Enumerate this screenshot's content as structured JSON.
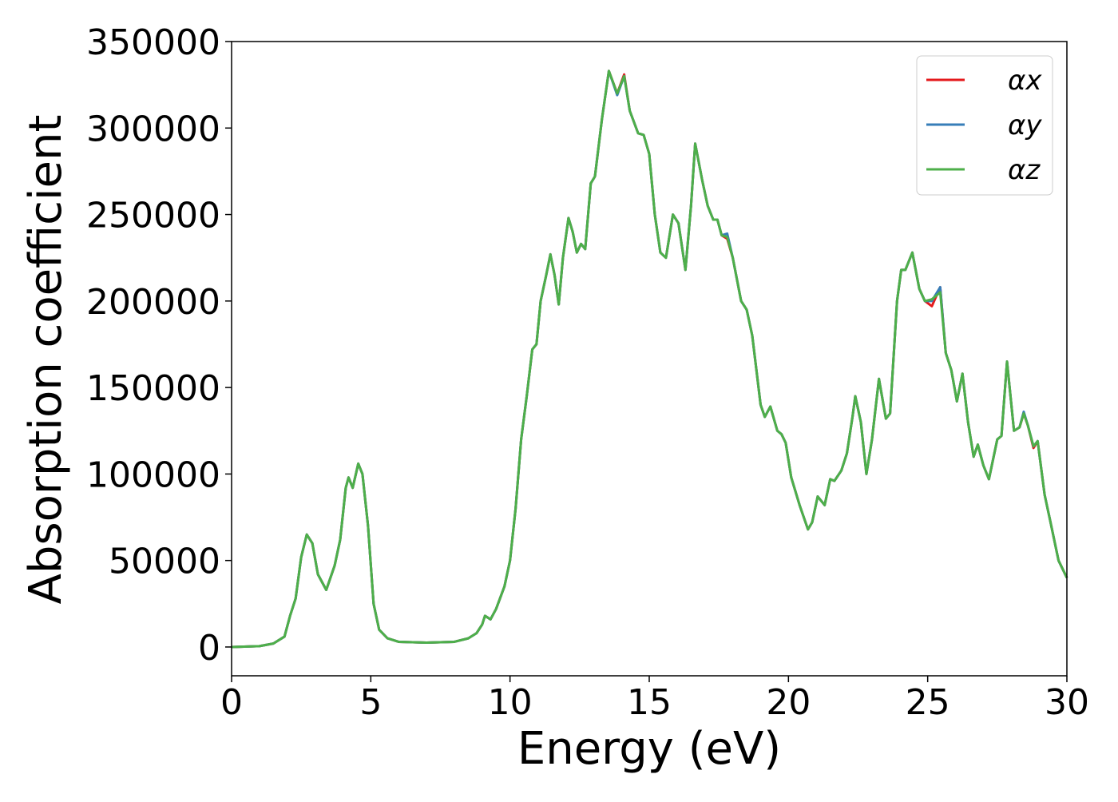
{
  "chart_data": {
    "type": "line",
    "xlabel": "Energy (eV)",
    "ylabel": "Absorption coefficient",
    "x": [
      0,
      1,
      1.5,
      1.9,
      2.1,
      2.3,
      2.5,
      2.7,
      2.9,
      3.1,
      3.4,
      3.7,
      3.9,
      4.1,
      4.2,
      4.35,
      4.55,
      4.7,
      4.9,
      5.1,
      5.3,
      5.6,
      6,
      7,
      8,
      8.5,
      8.8,
      9,
      9.1,
      9.3,
      9.5,
      9.8,
      10,
      10.2,
      10.4,
      10.6,
      10.8,
      10.95,
      11.1,
      11.3,
      11.45,
      11.6,
      11.75,
      11.9,
      12.1,
      12.25,
      12.4,
      12.55,
      12.7,
      12.9,
      13.05,
      13.3,
      13.55,
      13.85,
      14.1,
      14.3,
      14.6,
      14.8,
      15,
      15.2,
      15.4,
      15.6,
      15.85,
      16.05,
      16.3,
      16.5,
      16.65,
      16.9,
      17.1,
      17.3,
      17.45,
      17.6,
      17.8,
      18,
      18.3,
      18.5,
      18.7,
      19,
      19.15,
      19.35,
      19.6,
      19.75,
      19.9,
      20.1,
      20.4,
      20.7,
      20.85,
      21.05,
      21.3,
      21.5,
      21.65,
      21.9,
      22.1,
      22.3,
      22.4,
      22.6,
      22.8,
      23,
      23.25,
      23.5,
      23.65,
      23.9,
      24.05,
      24.2,
      24.45,
      24.7,
      24.9,
      25.15,
      25.45,
      25.65,
      25.85,
      26.05,
      26.25,
      26.45,
      26.65,
      26.8,
      27,
      27.2,
      27.5,
      27.65,
      27.85,
      28.1,
      28.3,
      28.45,
      28.6,
      28.8,
      28.95,
      29.2,
      29.4,
      29.7,
      30
    ],
    "series": [
      {
        "name": "αx",
        "color": "#e41a1c",
        "values": [
          0,
          500,
          2000,
          6000,
          18000,
          28000,
          52000,
          65000,
          60000,
          42000,
          33000,
          47000,
          62000,
          92000,
          98000,
          92000,
          106000,
          100000,
          70000,
          25000,
          10000,
          5000,
          3000,
          2500,
          3000,
          5000,
          8000,
          13000,
          18000,
          16000,
          22000,
          35000,
          50000,
          80000,
          120000,
          145000,
          172000,
          175000,
          200000,
          215000,
          227000,
          215000,
          198000,
          225000,
          248000,
          240000,
          228000,
          233000,
          230000,
          268000,
          272000,
          305000,
          333000,
          320000,
          331000,
          310000,
          297000,
          296000,
          285000,
          250000,
          228000,
          225000,
          250000,
          245000,
          218000,
          255000,
          291000,
          270000,
          255000,
          247000,
          247000,
          238000,
          236000,
          225000,
          200000,
          195000,
          180000,
          140000,
          133000,
          139000,
          125000,
          123000,
          118000,
          98000,
          82000,
          68000,
          72000,
          87000,
          82000,
          97000,
          96000,
          102000,
          112000,
          133000,
          145000,
          130000,
          100000,
          120000,
          155000,
          132000,
          135000,
          200000,
          218000,
          218000,
          228000,
          207000,
          200000,
          197000,
          208000,
          170000,
          160000,
          142000,
          158000,
          130000,
          110000,
          117000,
          105000,
          97000,
          120000,
          122000,
          165000,
          125000,
          127000,
          135000,
          128000,
          115000,
          119000,
          88000,
          73000,
          50000,
          40000
        ]
      },
      {
        "name": "αy",
        "color": "#377eb8",
        "values": [
          0,
          500,
          2000,
          6000,
          18000,
          28000,
          52000,
          65000,
          60000,
          42000,
          33000,
          47000,
          62000,
          92000,
          98000,
          92000,
          106000,
          100000,
          70000,
          25000,
          10000,
          5000,
          3000,
          2500,
          3000,
          5000,
          8000,
          13000,
          18000,
          16000,
          22000,
          35000,
          50000,
          80000,
          120000,
          145000,
          172000,
          175000,
          200000,
          215000,
          227000,
          215000,
          198000,
          225000,
          248000,
          240000,
          228000,
          233000,
          230000,
          268000,
          272000,
          305000,
          333000,
          319000,
          330000,
          310000,
          297000,
          296000,
          285000,
          250000,
          228000,
          225000,
          250000,
          245000,
          218000,
          255000,
          291000,
          270000,
          255000,
          247000,
          247000,
          238000,
          239000,
          225000,
          200000,
          195000,
          180000,
          140000,
          133000,
          139000,
          125000,
          123000,
          118000,
          98000,
          82000,
          68000,
          72000,
          87000,
          82000,
          97000,
          96000,
          102000,
          112000,
          133000,
          145000,
          130000,
          100000,
          120000,
          155000,
          132000,
          135000,
          200000,
          218000,
          218000,
          228000,
          207000,
          200000,
          200000,
          208000,
          170000,
          160000,
          142000,
          158000,
          130000,
          110000,
          117000,
          105000,
          97000,
          120000,
          122000,
          165000,
          125000,
          127000,
          136000,
          128000,
          116000,
          119000,
          88000,
          73000,
          50000,
          40000
        ]
      },
      {
        "name": "αz",
        "color": "#4daf4a",
        "values": [
          0,
          500,
          2000,
          6000,
          18000,
          28000,
          52000,
          65000,
          60000,
          42000,
          33000,
          47000,
          62000,
          92000,
          98000,
          92000,
          106000,
          100000,
          70000,
          25000,
          10000,
          5000,
          3000,
          2500,
          3000,
          5000,
          8000,
          13000,
          18000,
          16000,
          22000,
          35000,
          50000,
          80000,
          120000,
          145000,
          172000,
          175000,
          200000,
          215000,
          227000,
          215000,
          198000,
          225000,
          248000,
          240000,
          228000,
          233000,
          230000,
          268000,
          272000,
          305000,
          333000,
          320000,
          330000,
          310000,
          297000,
          296000,
          285000,
          250000,
          228000,
          225000,
          250000,
          245000,
          218000,
          255000,
          291000,
          270000,
          255000,
          247000,
          247000,
          238000,
          237000,
          225000,
          200000,
          195000,
          180000,
          140000,
          133000,
          139000,
          125000,
          123000,
          118000,
          98000,
          82000,
          68000,
          72000,
          87000,
          82000,
          97000,
          96000,
          102000,
          112000,
          133000,
          145000,
          130000,
          100000,
          120000,
          155000,
          132000,
          135000,
          200000,
          218000,
          218000,
          228000,
          207000,
          200000,
          201000,
          205000,
          170000,
          160000,
          142000,
          158000,
          130000,
          110000,
          117000,
          105000,
          97000,
          120000,
          122000,
          165000,
          125000,
          127000,
          135000,
          128000,
          116000,
          119000,
          88000,
          73000,
          50000,
          40000
        ]
      }
    ],
    "xlim": [
      0,
      30
    ],
    "xticks": [
      0,
      5,
      10,
      15,
      20,
      25,
      30
    ],
    "ylim": [
      -16650,
      350000
    ],
    "yticks": [
      0,
      50000,
      100000,
      150000,
      200000,
      250000,
      300000,
      350000
    ],
    "grid": false,
    "legend": "upper right"
  }
}
